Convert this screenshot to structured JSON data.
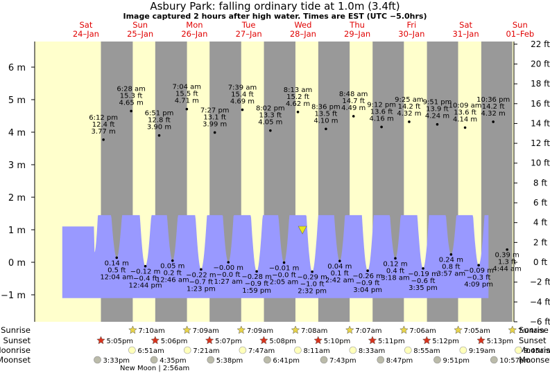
{
  "chart_data": {
    "type": "area",
    "title": "Asbury Park: falling  ordinary tide at 1.0m (3.4ft)",
    "subtitle": "Image captured 2 hours after high water. Times are EST (UTC −5.0hrs)",
    "ylim_m": [
      -1.8,
      6.8
    ],
    "left_axis": {
      "unit": "m",
      "ticks": [
        -1,
        0,
        1,
        2,
        3,
        4,
        5,
        6
      ],
      "labels": [
        "−1 m",
        "0 m",
        "1 m",
        "2 m",
        "3 m",
        "4 m",
        "5 m",
        "6 m"
      ]
    },
    "right_axis": {
      "unit": "ft",
      "ticks": [
        -6,
        -4,
        -2,
        0,
        2,
        4,
        6,
        8,
        10,
        12,
        14,
        16,
        18,
        20,
        22
      ],
      "labels": [
        "−6 ft",
        "−4 ft",
        "−2 ft",
        "0 ft",
        "2 ft",
        "4 ft",
        "6 ft",
        "8 ft",
        "10 ft",
        "12 ft",
        "14 ft",
        "16 ft",
        "18 ft",
        "20 ft",
        "22 ft"
      ]
    },
    "days": [
      {
        "dow": "Sat",
        "date": "24–Jan"
      },
      {
        "dow": "Sun",
        "date": "25–Jan"
      },
      {
        "dow": "Mon",
        "date": "26–Jan"
      },
      {
        "dow": "Tue",
        "date": "27–Jan"
      },
      {
        "dow": "Wed",
        "date": "28–Jan"
      },
      {
        "dow": "Thu",
        "date": "29–Jan"
      },
      {
        "dow": "Fri",
        "date": "30–Jan"
      },
      {
        "dow": "Sat",
        "date": "31–Jan"
      },
      {
        "dow": "Sun",
        "date": "01–Feb"
      }
    ],
    "current": {
      "value_m": 1.0
    },
    "high_tides": [
      {
        "time": "6:12 pm",
        "ft": "12.4 ft",
        "m": 3.77,
        "label": "3.77 m"
      },
      {
        "time": "6:28 am",
        "ft": "15.3 ft",
        "m": 4.65,
        "label": "4.65 m"
      },
      {
        "time": "6:51 pm",
        "ft": "12.8 ft",
        "m": 3.9,
        "label": "3.90 m"
      },
      {
        "time": "7:04 am",
        "ft": "15.5 ft",
        "m": 4.71,
        "label": "4.71 m"
      },
      {
        "time": "7:27 pm",
        "ft": "13.1 ft",
        "m": 3.99,
        "label": "3.99 m"
      },
      {
        "time": "7:39 am",
        "ft": "15.4 ft",
        "m": 4.69,
        "label": "4.69 m"
      },
      {
        "time": "8:02 pm",
        "ft": "13.3 ft",
        "m": 4.05,
        "label": "4.05 m"
      },
      {
        "time": "8:13 am",
        "ft": "15.2 ft",
        "m": 4.62,
        "label": "4.62 m"
      },
      {
        "time": "8:36 pm",
        "ft": "13.5 ft",
        "m": 4.1,
        "label": "4.10 m"
      },
      {
        "time": "8:48 am",
        "ft": "14.7 ft",
        "m": 4.49,
        "label": "4.49 m"
      },
      {
        "time": "9:12 pm",
        "ft": "13.6 ft",
        "m": 4.16,
        "label": "4.16 m"
      },
      {
        "time": "9:25 am",
        "ft": "14.2 ft",
        "m": 4.32,
        "label": "4.32 m"
      },
      {
        "time": "9:51 pm",
        "ft": "13.9 ft",
        "m": 4.24,
        "label": "4.24 m"
      },
      {
        "time": "10:09 am",
        "ft": "13.6 ft",
        "m": 4.14,
        "label": "4.14 m"
      },
      {
        "time": "10:36 pm",
        "ft": "14.2 ft",
        "m": 4.32,
        "label": "4.32 m"
      }
    ],
    "low_tides": [
      {
        "time": "12:04 am",
        "ft": "0.5 ft",
        "m": 0.14,
        "label": "0.14 m"
      },
      {
        "time": "12:44 pm",
        "ft": "−0.4 ft",
        "m": -0.12,
        "label": "−0.12 m"
      },
      {
        "time": "12:46 am",
        "ft": "0.2 ft",
        "m": 0.05,
        "label": "0.05 m"
      },
      {
        "time": "1:23 pm",
        "ft": "−0.7 ft",
        "m": -0.22,
        "label": "−0.22 m"
      },
      {
        "time": "1:27 am",
        "ft": "−0.0 ft",
        "m": -0.0,
        "label": "−0.00 m"
      },
      {
        "time": "1:59 pm",
        "ft": "−0.9 ft",
        "m": -0.28,
        "label": "−0.28 m"
      },
      {
        "time": "2:05 am",
        "ft": "−0.0 ft",
        "m": -0.01,
        "label": "−0.01 m"
      },
      {
        "time": "2:32 pm",
        "ft": "−1.0 ft",
        "m": -0.29,
        "label": "−0.29 m"
      },
      {
        "time": "2:42 am",
        "ft": "0.1 ft",
        "m": 0.04,
        "label": "0.04 m"
      },
      {
        "time": "3:04 pm",
        "ft": "−0.9 ft",
        "m": -0.26,
        "label": "−0.26 m"
      },
      {
        "time": "3:18 am",
        "ft": "0.4 ft",
        "m": 0.12,
        "label": "0.12 m"
      },
      {
        "time": "3:35 pm",
        "ft": "−0.6 ft",
        "m": -0.19,
        "label": "−0.19 m"
      },
      {
        "time": "3:57 am",
        "ft": "0.8 ft",
        "m": 0.24,
        "label": "0.24 m"
      },
      {
        "time": "4:09 pm",
        "ft": "−0.3 ft",
        "m": -0.09,
        "label": "−0.09 m"
      },
      {
        "time": "4:44 am",
        "ft": "1.3 ft",
        "m": 0.39,
        "label": "0.39 m"
      }
    ],
    "row_labels": [
      "Sunrise",
      "Sunset",
      "Moonrise",
      "Moonset"
    ],
    "sunrise": [
      "7:10am",
      "7:09am",
      "7:09am",
      "7:08am",
      "7:07am",
      "7:06am",
      "7:05am",
      "7:04am"
    ],
    "sunset": [
      "5:05pm",
      "5:06pm",
      "5:07pm",
      "5:08pm",
      "5:10pm",
      "5:11pm",
      "5:12pm",
      "5:13pm"
    ],
    "moonrise": [
      "6:51am",
      "7:21am",
      "7:47am",
      "8:11am",
      "8:33am",
      "8:55am",
      "9:19am",
      "9:45am"
    ],
    "moonset": [
      "3:33pm",
      "4:35pm",
      "5:38pm",
      "6:41pm",
      "7:43pm",
      "8:47pm",
      "9:51pm",
      "10:57pm"
    ],
    "moon_phase": "New Moon | 2:56am",
    "colors": {
      "day": "#ffffcc",
      "night": "#999999",
      "water": "#9999ff",
      "day_label": "#e00000"
    }
  }
}
